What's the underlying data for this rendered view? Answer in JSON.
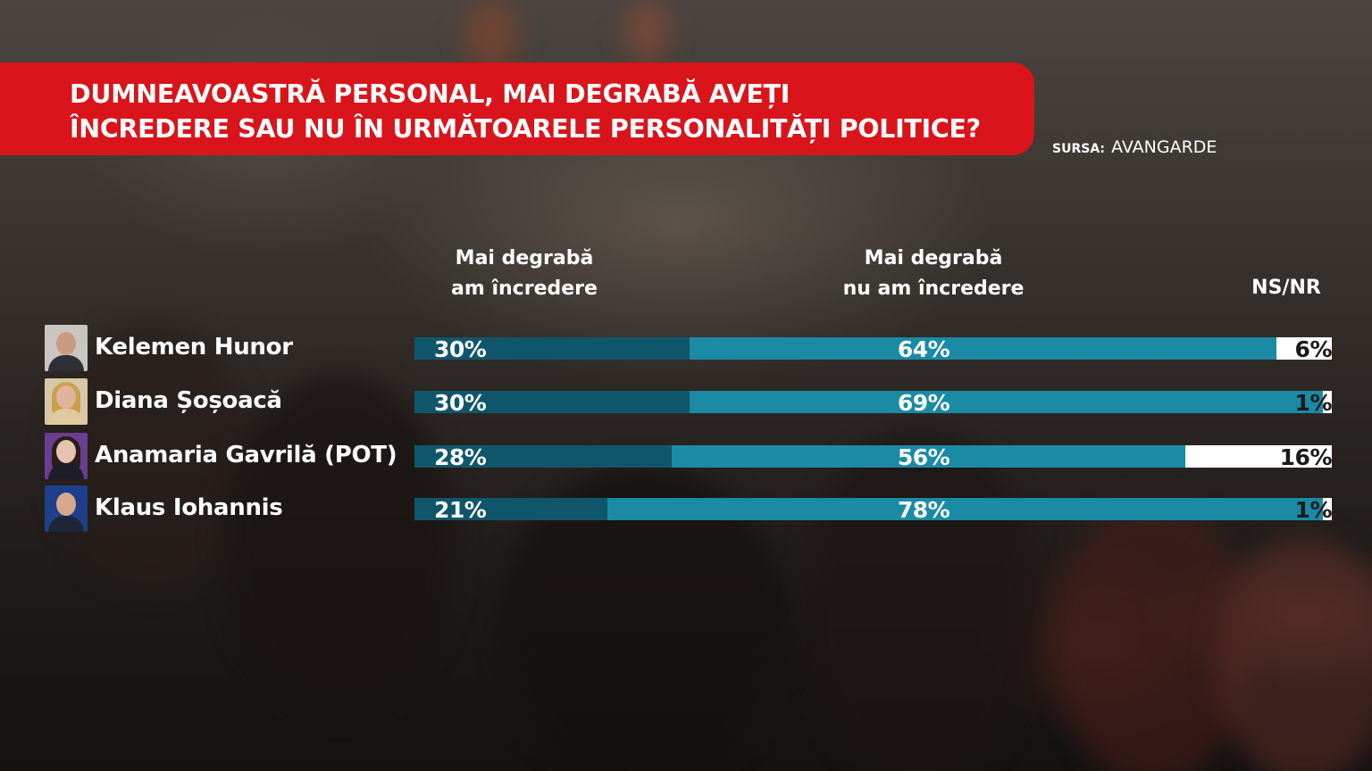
{
  "title": {
    "line1": "DUMNEAVOASTRĂ PERSONAL, MAI DEGRABĂ AVEȚI",
    "line2": "ÎNCREDERE SAU NU ÎN URMĂTOARELE PERSONALITĂȚI POLITICE?"
  },
  "source": {
    "label": "SURSA:",
    "name": "AVANGARDE"
  },
  "colors": {
    "title_band": "#d9141b",
    "trust": "#10566a",
    "distrust": "#1a8aa5",
    "nsnr": "#ffffff"
  },
  "chart_data": {
    "type": "bar",
    "orientation": "horizontal",
    "stacked": true,
    "normalized_percent": true,
    "title": "DUMNEAVOASTRĂ PERSONAL, MAI DEGRABĂ AVEȚI ÎNCREDERE SAU NU ÎN URMĂTOARELE PERSONALITĂȚI POLITICE?",
    "categories": [
      "Kelemen Hunor",
      "Diana Șoșoacă",
      "Anamaria Gavrilă (POT)",
      "Klaus Iohannis"
    ],
    "series": [
      {
        "name": "Mai degrabă am încredere",
        "values": [
          30,
          30,
          28,
          21
        ],
        "color": "#10566a"
      },
      {
        "name": "Mai degrabă nu am încredere",
        "values": [
          64,
          69,
          56,
          78
        ],
        "color": "#1a8aa5"
      },
      {
        "name": "NS/NR",
        "values": [
          6,
          1,
          16,
          1
        ],
        "color": "#ffffff"
      }
    ],
    "value_suffix": "%",
    "series_headers": [
      {
        "line1": "Mai degrabă",
        "line2": "am încredere"
      },
      {
        "line1": "Mai degrabă",
        "line2": "nu am încredere"
      },
      {
        "line1": "NS/NR",
        "line2": ""
      }
    ],
    "legend": "top"
  },
  "avatars": [
    {
      "icon": "portrait-man-gray-icon",
      "bg": "#c9c6c2",
      "skin": "#c99a82",
      "cloth": "#2e2f36"
    },
    {
      "icon": "portrait-woman-blonde-icon",
      "bg": "#d7c7a8",
      "skin": "#e0b39a",
      "hair": "#c9a04c",
      "cloth": "#e0c9a0"
    },
    {
      "icon": "portrait-woman-dark-icon",
      "bg": "#6b3e8f",
      "skin": "#e6c2b0",
      "hair": "#2a1d1a",
      "cloth": "#1e1e28"
    },
    {
      "icon": "portrait-man-suit-icon",
      "bg": "#1e3f8a",
      "skin": "#d8a88e",
      "cloth": "#20263a"
    }
  ]
}
